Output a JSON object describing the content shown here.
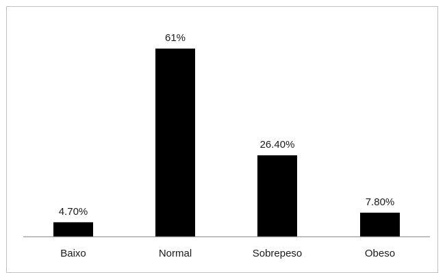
{
  "chart_data": {
    "type": "bar",
    "title": "",
    "xlabel": "",
    "ylabel": "",
    "categories": [
      "Baixo",
      "Normal",
      "Sobrepeso",
      "Obeso"
    ],
    "values": [
      4.7,
      61,
      26.4,
      7.8
    ],
    "data_labels": [
      "4.70%",
      "61%",
      "26.40%",
      "7.80%"
    ],
    "ylim": [
      0,
      70
    ],
    "grid": false,
    "legend": "none",
    "bar_color": "#000000"
  }
}
